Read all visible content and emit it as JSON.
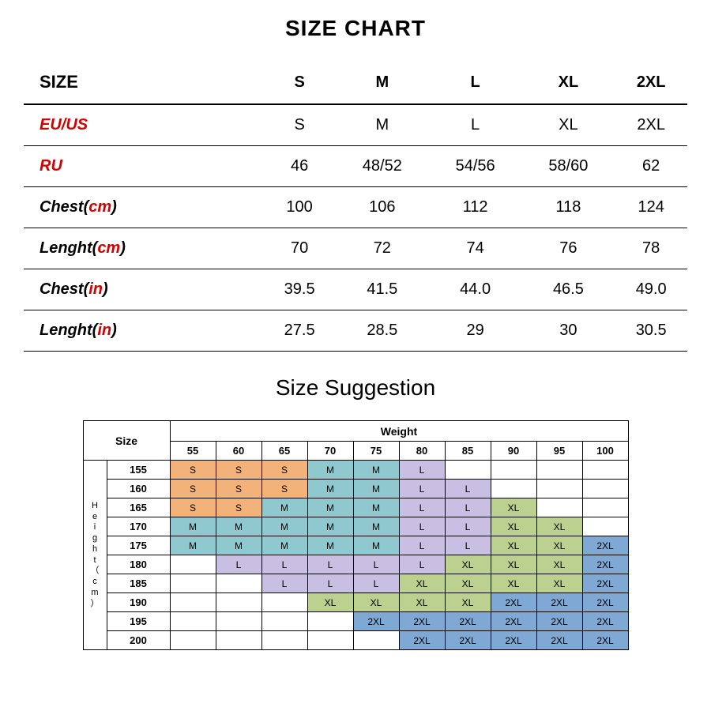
{
  "title": "SIZE CHART",
  "sizeTable": {
    "header": [
      "SIZE",
      "S",
      "M",
      "L",
      "XL",
      "2XL"
    ],
    "rows": [
      {
        "labelParts": [
          {
            "t": "EU/US",
            "c": "red"
          }
        ],
        "vals": [
          "S",
          "M",
          "L",
          "XL",
          "2XL"
        ]
      },
      {
        "labelParts": [
          {
            "t": "RU",
            "c": "red"
          }
        ],
        "vals": [
          "46",
          "48/52",
          "54/56",
          "58/60",
          "62"
        ]
      },
      {
        "labelParts": [
          {
            "t": "Chest(",
            "c": "black"
          },
          {
            "t": "cm",
            "c": "red"
          },
          {
            "t": ")",
            "c": "black"
          }
        ],
        "vals": [
          "100",
          "106",
          "112",
          "118",
          "124"
        ]
      },
      {
        "labelParts": [
          {
            "t": "Lenght(",
            "c": "black"
          },
          {
            "t": "cm",
            "c": "red"
          },
          {
            "t": ")",
            "c": "black"
          }
        ],
        "vals": [
          "70",
          "72",
          "74",
          "76",
          "78"
        ]
      },
      {
        "labelParts": [
          {
            "t": "Chest(",
            "c": "black"
          },
          {
            "t": "in",
            "c": "red"
          },
          {
            "t": ")",
            "c": "black"
          }
        ],
        "vals": [
          "39.5",
          "41.5",
          "44.0",
          "46.5",
          "49.0"
        ]
      },
      {
        "labelParts": [
          {
            "t": "Lenght(",
            "c": "black"
          },
          {
            "t": "in",
            "c": "red"
          },
          {
            "t": ")",
            "c": "black"
          }
        ],
        "vals": [
          "27.5",
          "28.5",
          "29",
          "30",
          "30.5"
        ]
      }
    ]
  },
  "suggestionTitle": "Size Suggestion",
  "suggestion": {
    "sizeLabel": "Size",
    "weightLabel": "Weight",
    "heightLabel": "Height（cm）",
    "weights": [
      "55",
      "60",
      "65",
      "70",
      "75",
      "80",
      "85",
      "90",
      "95",
      "100"
    ],
    "heights": [
      "155",
      "160",
      "165",
      "170",
      "175",
      "180",
      "185",
      "190",
      "195",
      "200"
    ],
    "colors": {
      "S": "#f3b27a",
      "M": "#8fc8cf",
      "L": "#c9bfe3",
      "XL": "#bcd08f",
      "2XL": "#7fa9d4",
      "": "#ffffff"
    },
    "grid": [
      [
        "S",
        "S",
        "S",
        "M",
        "M",
        "L",
        "",
        "",
        "",
        ""
      ],
      [
        "S",
        "S",
        "S",
        "M",
        "M",
        "L",
        "L",
        "",
        "",
        ""
      ],
      [
        "S",
        "S",
        "M",
        "M",
        "M",
        "L",
        "L",
        "XL",
        "",
        ""
      ],
      [
        "M",
        "M",
        "M",
        "M",
        "M",
        "L",
        "L",
        "XL",
        "XL",
        ""
      ],
      [
        "M",
        "M",
        "M",
        "M",
        "M",
        "L",
        "L",
        "XL",
        "XL",
        "2XL"
      ],
      [
        "",
        "L",
        "L",
        "L",
        "L",
        "L",
        "XL",
        "XL",
        "XL",
        "2XL"
      ],
      [
        "",
        "",
        "L",
        "L",
        "L",
        "XL",
        "XL",
        "XL",
        "XL",
        "2XL"
      ],
      [
        "",
        "",
        "",
        "XL",
        "XL",
        "XL",
        "XL",
        "2XL",
        "2XL",
        "2XL"
      ],
      [
        "",
        "",
        "",
        "",
        "2XL",
        "2XL",
        "2XL",
        "2XL",
        "2XL",
        "2XL"
      ],
      [
        "",
        "",
        "",
        "",
        "",
        "2XL",
        "2XL",
        "2XL",
        "2XL",
        "2XL"
      ]
    ]
  }
}
